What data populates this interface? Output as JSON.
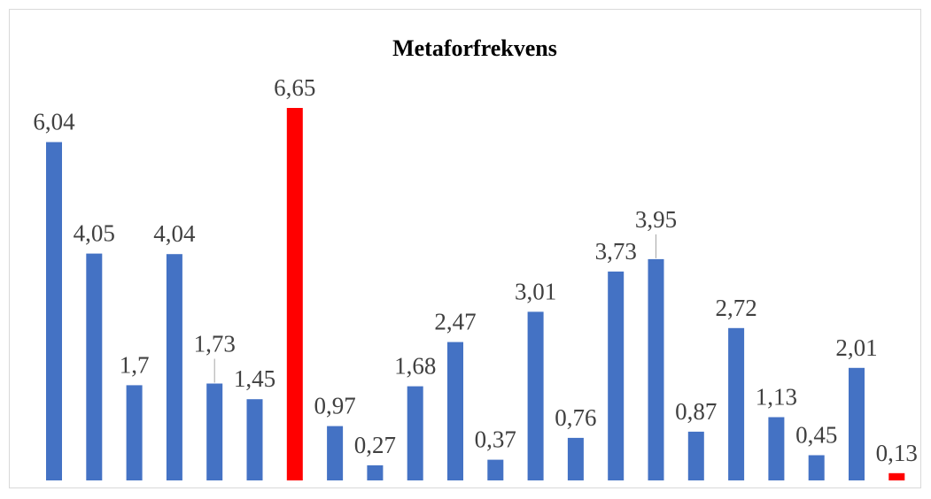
{
  "chart_data": {
    "type": "bar",
    "title": "Metaforfrekvens",
    "xlabel": "",
    "ylabel": "",
    "ylim": [
      0,
      6.65
    ],
    "grid": false,
    "legend": "none",
    "categories": [
      "",
      "",
      "",
      "",
      "",
      "",
      "",
      "",
      "",
      "",
      "",
      "",
      "",
      "",
      "",
      "",
      "",
      "",
      "",
      "",
      "",
      ""
    ],
    "values": [
      6.04,
      4.05,
      1.7,
      4.04,
      1.73,
      1.45,
      6.65,
      0.97,
      0.27,
      1.68,
      2.47,
      0.37,
      3.01,
      0.76,
      3.73,
      3.95,
      0.87,
      2.72,
      1.13,
      0.45,
      2.01,
      0.13
    ],
    "data_labels": [
      "6,04",
      "4,05",
      "1,7",
      "4,04",
      "1,73",
      "1,45",
      "6,65",
      "0,97",
      "0,27",
      "1,68",
      "2,47",
      "0,37",
      "3,01",
      "0,76",
      "3,73",
      "3,95",
      "0,87",
      "2,72",
      "1,13",
      "0,45",
      "2,01",
      "0,13"
    ],
    "highlighted": [
      6,
      21
    ],
    "colors": {
      "bar": "#4472c4",
      "highlight": "#ff0000",
      "label": "#404040",
      "leader": "#a6a6a6"
    }
  }
}
